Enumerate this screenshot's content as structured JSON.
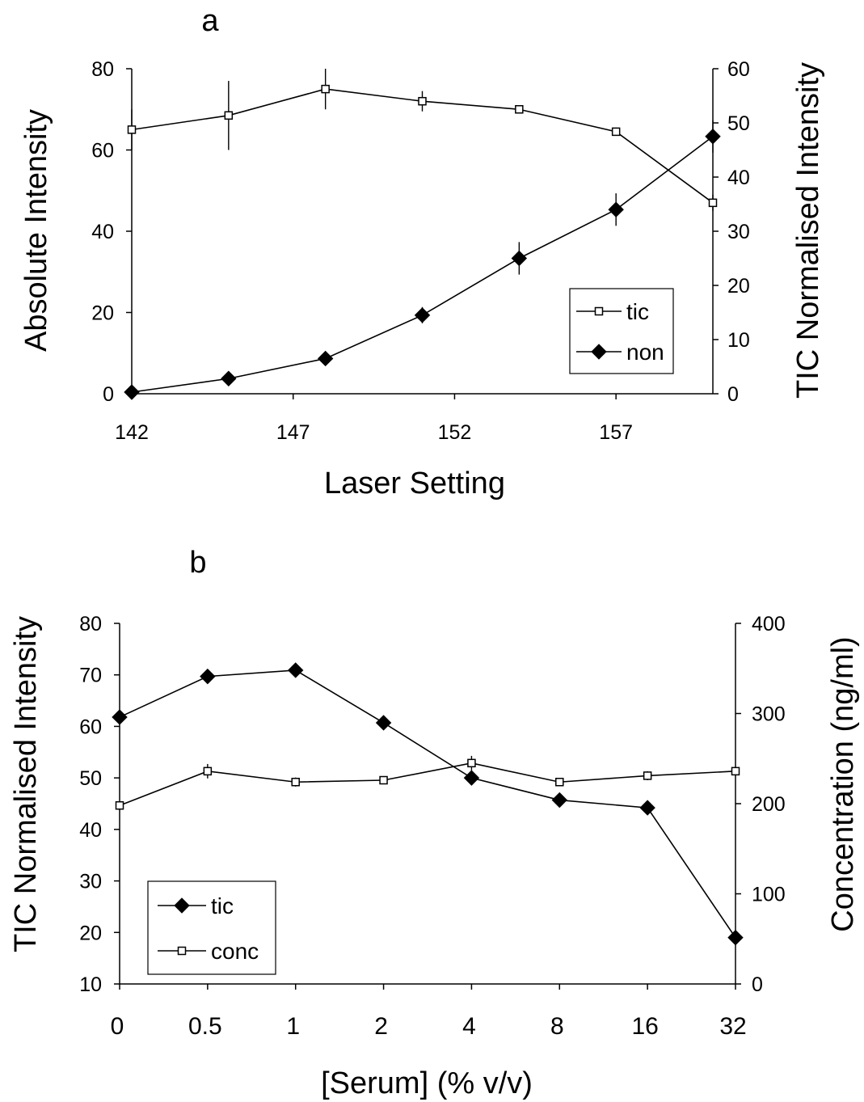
{
  "chart_data": [
    {
      "type": "line",
      "panel_label": "a",
      "xlabel": "Laser Setting",
      "ylabel_left": "Absolute Intensity",
      "ylabel_right": "TIC Normalised Intensity",
      "x_ticks": [
        "142",
        "147",
        "152",
        "157"
      ],
      "x_tick_values": [
        142,
        147,
        152,
        157
      ],
      "y_left_ticks": [
        "0",
        "20",
        "40",
        "60",
        "80"
      ],
      "y_right_ticks": [
        "0",
        "10",
        "20",
        "30",
        "40",
        "50",
        "60"
      ],
      "xlim": [
        142,
        160
      ],
      "ylim_left": [
        0,
        80
      ],
      "ylim_right": [
        0,
        60
      ],
      "legend_position": "bottom-right",
      "series": [
        {
          "name": "tic",
          "axis": "left",
          "marker": "open-square",
          "x": [
            142,
            145,
            148,
            151,
            154,
            157,
            160
          ],
          "y": [
            65,
            68.5,
            75,
            72,
            70,
            64.5,
            47
          ],
          "error": [
            5,
            8.5,
            5,
            2.5,
            0.5,
            1,
            2
          ]
        },
        {
          "name": "non",
          "axis": "right",
          "marker": "filled-diamond",
          "x": [
            142,
            145,
            148,
            151,
            154,
            157,
            160
          ],
          "y": [
            0.3,
            2.8,
            6.5,
            14.5,
            25,
            34,
            47.5
          ],
          "error": [
            0.3,
            0.5,
            0.5,
            1.5,
            3,
            3,
            3
          ]
        }
      ]
    },
    {
      "type": "line",
      "panel_label": "b",
      "xlabel": "[Serum] (% v/v)",
      "ylabel_left": "TIC Normalised Intensity",
      "ylabel_right": "Concentration (ng/ml)",
      "categories": [
        "0",
        "0.5",
        "1",
        "2",
        "4",
        "8",
        "16",
        "32"
      ],
      "y_left_ticks": [
        "10",
        "20",
        "30",
        "40",
        "50",
        "60",
        "70",
        "80"
      ],
      "y_right_ticks": [
        "0",
        "100",
        "200",
        "300",
        "400"
      ],
      "ylim_left": [
        10,
        80
      ],
      "ylim_right": [
        0,
        400
      ],
      "legend_position": "bottom-left",
      "series": [
        {
          "name": "tic",
          "axis": "left",
          "marker": "filled-diamond",
          "values": [
            61.8,
            69.7,
            70.9,
            60.7,
            50,
            45.7,
            44.2,
            19
          ],
          "error": [
            0,
            0,
            0,
            0,
            0,
            0,
            0,
            0
          ]
        },
        {
          "name": "conc",
          "axis": "right",
          "marker": "open-square",
          "values": [
            198,
            236,
            224,
            226,
            245,
            224,
            231,
            236
          ],
          "error": [
            0,
            8,
            5,
            0,
            8,
            3,
            5,
            0
          ]
        }
      ]
    }
  ]
}
